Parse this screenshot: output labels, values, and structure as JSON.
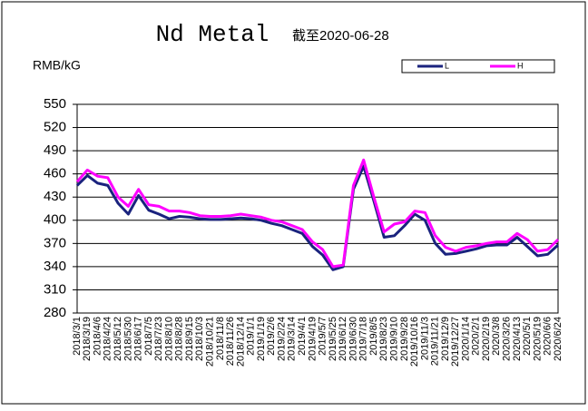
{
  "chart_data": {
    "type": "line",
    "title": "Nd Metal",
    "subtitle": "截至2020-06-28",
    "y_label": "RMB/kG",
    "categories": [
      "2018/3/1",
      "2018/3/19",
      "2018/4/6",
      "2018/4/24",
      "2018/5/12",
      "2018/5/30",
      "2018/6/17",
      "2018/7/5",
      "2018/7/23",
      "2018/8/10",
      "2018/8/28",
      "2018/9/15",
      "2018/10/3",
      "2018/10/21",
      "2018/11/8",
      "2018/11/26",
      "2018/12/14",
      "2019/1/1",
      "2019/1/19",
      "2019/2/6",
      "2019/2/24",
      "2019/3/14",
      "2019/4/1",
      "2019/4/19",
      "2019/5/7",
      "2019/5/25",
      "2019/6/12",
      "2019/6/30",
      "2019/7/18",
      "2019/8/5",
      "2019/8/23",
      "2019/9/10",
      "2019/9/28",
      "2019/10/16",
      "2019/11/3",
      "2019/11/21",
      "2019/12/9",
      "2019/12/27",
      "2020/1/14",
      "2020/2/1",
      "2020/2/19",
      "2020/3/8",
      "2020/3/26",
      "2020/4/13",
      "2020/5/1",
      "2020/5/19",
      "2020/6/6",
      "2020/6/24"
    ],
    "series": [
      {
        "name": "L",
        "color": "#1a237e",
        "values": [
          445,
          458,
          448,
          445,
          422,
          408,
          432,
          413,
          408,
          402,
          405,
          404,
          402,
          401,
          401,
          402,
          403,
          402,
          400,
          396,
          393,
          388,
          383,
          366,
          355,
          336,
          340,
          440,
          470,
          425,
          378,
          380,
          393,
          408,
          400,
          370,
          356,
          357,
          360,
          363,
          367,
          368,
          368,
          378,
          366,
          354,
          356,
          368
        ]
      },
      {
        "name": "H",
        "color": "#ff00ff",
        "values": [
          450,
          465,
          457,
          455,
          430,
          418,
          440,
          420,
          418,
          412,
          412,
          410,
          406,
          405,
          405,
          406,
          408,
          406,
          404,
          400,
          398,
          393,
          388,
          372,
          362,
          340,
          342,
          445,
          478,
          430,
          385,
          395,
          398,
          412,
          410,
          380,
          365,
          360,
          365,
          367,
          370,
          372,
          372,
          383,
          375,
          360,
          362,
          375
        ]
      }
    ],
    "ylim": [
      280,
      550
    ],
    "yticks": [
      280,
      310,
      340,
      370,
      400,
      430,
      460,
      490,
      520,
      550
    ],
    "grid": true
  }
}
